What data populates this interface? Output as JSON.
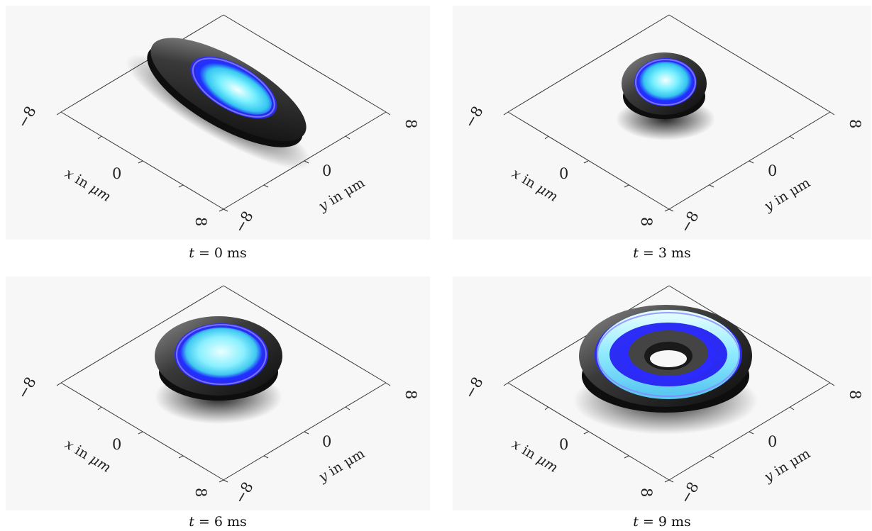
{
  "panels": [
    {
      "caption_var": "t",
      "caption_eq": "= 0",
      "caption_unit": "ms",
      "shape": "elongated"
    },
    {
      "caption_var": "t",
      "caption_eq": "= 3",
      "caption_unit": "ms",
      "shape": "small"
    },
    {
      "caption_var": "t",
      "caption_eq": "= 6",
      "caption_unit": "ms",
      "shape": "disc"
    },
    {
      "caption_var": "t",
      "caption_eq": "= 9",
      "caption_unit": "ms",
      "shape": "ring"
    }
  ],
  "axes": {
    "x_var": "x",
    "x_rest": " in ",
    "x_unit": "μm",
    "y_var": "y",
    "y_rest": " in ",
    "y_unit": "μm",
    "tick_min": "−8",
    "tick_zero": "0",
    "tick_max": "8"
  },
  "colors": {
    "panel_bg": "#f7f7f7",
    "shell_dark": "#1a1a1a",
    "ring_blue": "#2b2bff",
    "core_cyan": "#5fe8ff",
    "core_light": "#e8ffff"
  }
}
